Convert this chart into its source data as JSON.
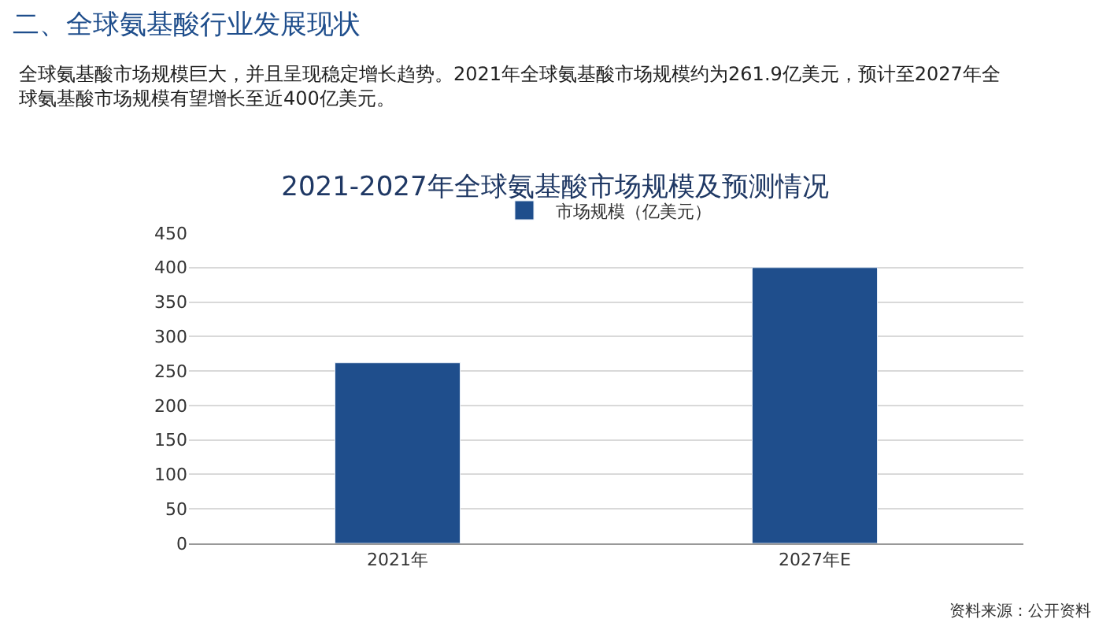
{
  "chart_data": {
    "type": "bar",
    "title": "2021-2027年全球氨基酸市场规模及预测情况",
    "categories": [
      "2021年",
      "2027年E"
    ],
    "series": [
      {
        "name": "市场规模（亿美元）",
        "color": "#1f4e8c",
        "values": [
          261.9,
          400
        ]
      }
    ],
    "ylim": [
      0,
      450
    ],
    "yticks": [
      0,
      50,
      100,
      150,
      200,
      250,
      300,
      350,
      400,
      450
    ],
    "grid": "y",
    "legend": "top",
    "annotations": [
      "二、全球氨基酸行业发展现状",
      "全球氨基酸市场规模巨大，并且呈现稳定增长趋势。2021年全球氨基酸市场规模约为261.9亿美元，预计至2027年全球氨基酸市场规模有望增长至近400亿美元。",
      "资料来源：公开资料"
    ]
  }
}
